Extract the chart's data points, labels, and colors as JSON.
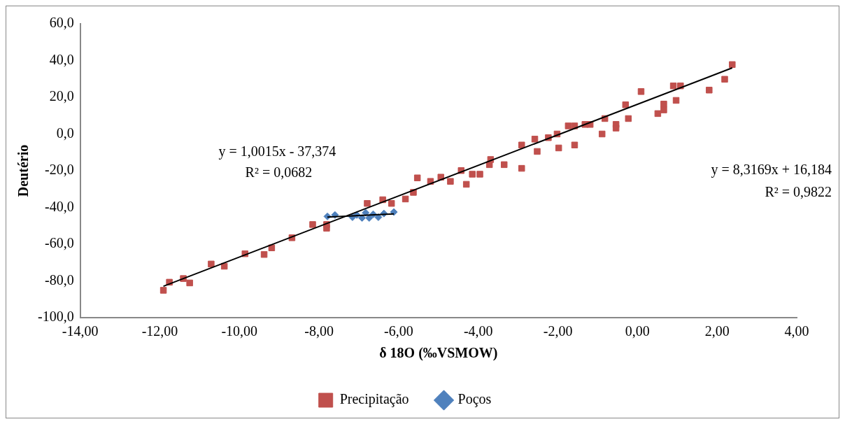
{
  "chart_data": {
    "type": "scatter",
    "xlabel": "δ 18O (‰VSMOW)",
    "ylabel": "Deutério",
    "annotations": [
      "y = 1,0015x - 37,374",
      "R² = 0,0682",
      "y = 8,3169x + 16,184",
      "R² = 0,9822"
    ],
    "series": [
      {
        "name": "Precipitação",
        "color": "#c0504d",
        "marker": "square",
        "x": [
          -11.91,
          -11.76,
          -11.41,
          -11.25,
          -10.71,
          -10.38,
          -9.86,
          -9.38,
          -9.19,
          -8.68,
          -8.16,
          -7.81,
          -7.81,
          -6.79,
          -6.4,
          -6.18,
          -5.83,
          -5.63,
          -5.53,
          -5.2,
          -4.94,
          -4.7,
          -4.43,
          -4.3,
          -4.15,
          -3.96,
          -3.72,
          -3.69,
          -3.35,
          -2.91,
          -2.91,
          -2.52,
          -2.58,
          -2.24,
          -2.02,
          -1.98,
          -1.74,
          -1.58,
          -1.58,
          -1.32,
          -1.19,
          -0.89,
          -0.82,
          -0.54,
          -0.54,
          -0.3,
          -0.23,
          0.09,
          0.51,
          0.66,
          0.66,
          0.9,
          1.08,
          0.97,
          1.8,
          2.19,
          2.38
        ],
        "values": [
          -85.1,
          -80.7,
          -78.7,
          -81.1,
          -70.8,
          -72.0,
          -65.2,
          -65.6,
          -62.0,
          -56.5,
          -49.3,
          -51.3,
          -49.3,
          -37.8,
          -35.8,
          -37.8,
          -35.4,
          -31.8,
          -23.9,
          -25.8,
          -23.5,
          -25.8,
          -19.9,
          -27.4,
          -21.9,
          -21.9,
          -16.7,
          -13.9,
          -16.7,
          -18.7,
          -6.0,
          -9.5,
          -2.8,
          -2.0,
          0,
          -7.6,
          4.4,
          4.4,
          -6.0,
          5.2,
          5.2,
          0,
          8.4,
          5.2,
          3.2,
          15.9,
          8.4,
          23.1,
          11.1,
          13.1,
          16.3,
          26.2,
          26.2,
          18.3,
          23.9,
          29.8,
          37.8
        ]
      },
      {
        "name": "Poços",
        "color": "#4f81bd",
        "marker": "diamond",
        "x": [
          -7.79,
          -7.6,
          -7.16,
          -7.05,
          -6.92,
          -6.83,
          -6.74,
          -6.64,
          -6.51,
          -6.37,
          -6.12
        ],
        "values": [
          -44.9,
          -44.1,
          -45.3,
          -44.1,
          -45.7,
          -42.9,
          -45.7,
          -43.7,
          -45.3,
          -43.3,
          -42.5
        ]
      },
      {
        "type": "line",
        "color": "#000000",
        "x": [
          -11.91,
          2.38
        ],
        "values": [
          -82.9,
          36.0
        ]
      },
      {
        "type": "line",
        "color": "#000000",
        "x": [
          -7.79,
          -6.12
        ],
        "values": [
          -45.2,
          -43.5
        ]
      }
    ],
    "xlim": [
      -14,
      4
    ],
    "xticks": [
      {
        "value": -14,
        "label": "-14,00"
      },
      {
        "value": -12,
        "label": "-12,00"
      },
      {
        "value": -10,
        "label": "-10,00"
      },
      {
        "value": -8,
        "label": "-8,00"
      },
      {
        "value": -6,
        "label": "-6,00"
      },
      {
        "value": -4,
        "label": "-4,00"
      },
      {
        "value": -2,
        "label": "-2,00"
      },
      {
        "value": 0,
        "label": "0,00"
      },
      {
        "value": 2,
        "label": "2,00"
      },
      {
        "value": 4,
        "label": "4,00"
      }
    ],
    "ylim": [
      -100,
      60
    ],
    "yticks": [
      {
        "value": -100,
        "label": "-100,0"
      },
      {
        "value": -80,
        "label": "-80,0"
      },
      {
        "value": -60,
        "label": "-60,0"
      },
      {
        "value": -40,
        "label": "-40,0"
      },
      {
        "value": -20,
        "label": "-20,0"
      },
      {
        "value": 0,
        "label": "0,0"
      },
      {
        "value": 20,
        "label": "20,0"
      },
      {
        "value": 40,
        "label": "40,0"
      },
      {
        "value": 60,
        "label": "60,0"
      }
    ],
    "grid": false,
    "legend": "bottom"
  }
}
